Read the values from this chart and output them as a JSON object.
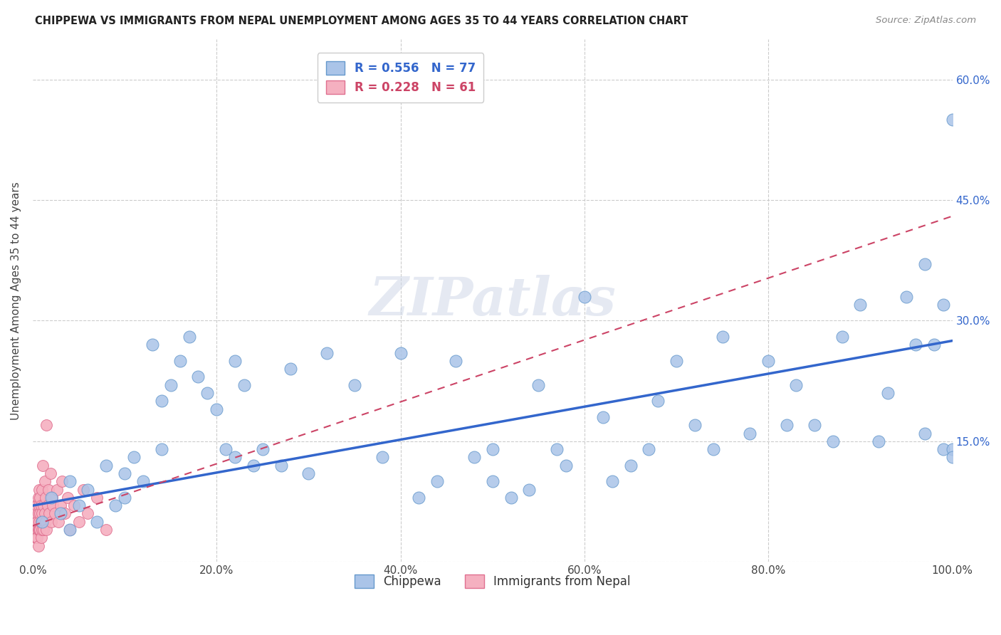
{
  "title": "CHIPPEWA VS IMMIGRANTS FROM NEPAL UNEMPLOYMENT AMONG AGES 35 TO 44 YEARS CORRELATION CHART",
  "source": "Source: ZipAtlas.com",
  "ylabel": "Unemployment Among Ages 35 to 44 years",
  "xlim": [
    0.0,
    1.0
  ],
  "ylim": [
    0.0,
    0.65
  ],
  "xticks": [
    0.0,
    0.2,
    0.4,
    0.6,
    0.8,
    1.0
  ],
  "yticks": [
    0.0,
    0.15,
    0.3,
    0.45,
    0.6
  ],
  "xtick_labels": [
    "0.0%",
    "20.0%",
    "40.0%",
    "60.0%",
    "80.0%",
    "100.0%"
  ],
  "ytick_labels_right": [
    "",
    "15.0%",
    "30.0%",
    "45.0%",
    "60.0%"
  ],
  "background_color": "#ffffff",
  "grid_color": "#cccccc",
  "chippewa_color": "#aac4e8",
  "nepal_color": "#f5b0c0",
  "chippewa_edge": "#6699cc",
  "nepal_edge": "#e07090",
  "trend_chippewa_color": "#3366cc",
  "trend_nepal_color": "#cc4466",
  "watermark_text": "ZIPatlas",
  "chippewa_x": [
    0.01,
    0.02,
    0.03,
    0.04,
    0.04,
    0.05,
    0.06,
    0.07,
    0.08,
    0.09,
    0.1,
    0.1,
    0.11,
    0.12,
    0.13,
    0.14,
    0.14,
    0.15,
    0.16,
    0.17,
    0.18,
    0.19,
    0.2,
    0.21,
    0.22,
    0.22,
    0.23,
    0.24,
    0.25,
    0.27,
    0.28,
    0.3,
    0.32,
    0.35,
    0.38,
    0.4,
    0.42,
    0.44,
    0.46,
    0.48,
    0.5,
    0.5,
    0.52,
    0.54,
    0.55,
    0.57,
    0.58,
    0.6,
    0.62,
    0.63,
    0.65,
    0.67,
    0.68,
    0.7,
    0.72,
    0.74,
    0.75,
    0.78,
    0.8,
    0.82,
    0.83,
    0.85,
    0.87,
    0.88,
    0.9,
    0.92,
    0.93,
    0.95,
    0.96,
    0.97,
    0.97,
    0.98,
    0.99,
    0.99,
    1.0,
    1.0,
    1.0
  ],
  "chippewa_y": [
    0.05,
    0.08,
    0.06,
    0.04,
    0.1,
    0.07,
    0.09,
    0.05,
    0.12,
    0.07,
    0.11,
    0.08,
    0.13,
    0.1,
    0.27,
    0.2,
    0.14,
    0.22,
    0.25,
    0.28,
    0.23,
    0.21,
    0.19,
    0.14,
    0.25,
    0.13,
    0.22,
    0.12,
    0.14,
    0.12,
    0.24,
    0.11,
    0.26,
    0.22,
    0.13,
    0.26,
    0.08,
    0.1,
    0.25,
    0.13,
    0.14,
    0.1,
    0.08,
    0.09,
    0.22,
    0.14,
    0.12,
    0.33,
    0.18,
    0.1,
    0.12,
    0.14,
    0.2,
    0.25,
    0.17,
    0.14,
    0.28,
    0.16,
    0.25,
    0.17,
    0.22,
    0.17,
    0.15,
    0.28,
    0.32,
    0.15,
    0.21,
    0.33,
    0.27,
    0.16,
    0.37,
    0.27,
    0.14,
    0.32,
    0.14,
    0.55,
    0.13
  ],
  "nepal_x": [
    0.001,
    0.002,
    0.002,
    0.003,
    0.003,
    0.003,
    0.004,
    0.004,
    0.004,
    0.005,
    0.005,
    0.005,
    0.005,
    0.006,
    0.006,
    0.006,
    0.006,
    0.007,
    0.007,
    0.007,
    0.007,
    0.008,
    0.008,
    0.008,
    0.009,
    0.009,
    0.009,
    0.01,
    0.01,
    0.01,
    0.011,
    0.011,
    0.012,
    0.012,
    0.013,
    0.013,
    0.014,
    0.014,
    0.015,
    0.015,
    0.016,
    0.017,
    0.018,
    0.019,
    0.02,
    0.021,
    0.022,
    0.024,
    0.026,
    0.028,
    0.03,
    0.032,
    0.035,
    0.038,
    0.04,
    0.045,
    0.05,
    0.055,
    0.06,
    0.07,
    0.08
  ],
  "nepal_y": [
    0.05,
    0.04,
    0.03,
    0.06,
    0.04,
    0.07,
    0.05,
    0.03,
    0.06,
    0.04,
    0.07,
    0.05,
    0.03,
    0.08,
    0.04,
    0.06,
    0.02,
    0.07,
    0.05,
    0.04,
    0.09,
    0.06,
    0.04,
    0.08,
    0.05,
    0.03,
    0.07,
    0.06,
    0.04,
    0.09,
    0.05,
    0.12,
    0.07,
    0.04,
    0.06,
    0.1,
    0.05,
    0.08,
    0.04,
    0.17,
    0.07,
    0.09,
    0.06,
    0.11,
    0.05,
    0.08,
    0.07,
    0.06,
    0.09,
    0.05,
    0.07,
    0.1,
    0.06,
    0.08,
    0.04,
    0.07,
    0.05,
    0.09,
    0.06,
    0.08,
    0.04
  ],
  "trend_chip_x0": 0.0,
  "trend_chip_x1": 1.0,
  "trend_chip_y0": 0.07,
  "trend_chip_y1": 0.275,
  "trend_nep_x0": 0.0,
  "trend_nep_x1": 1.0,
  "trend_nep_y0": 0.045,
  "trend_nep_y1": 0.43
}
